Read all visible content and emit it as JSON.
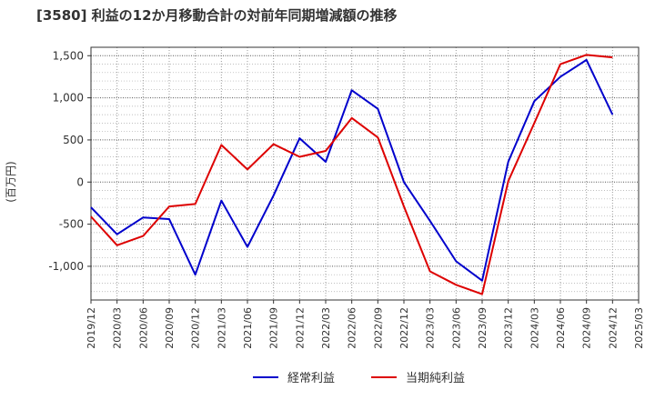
{
  "chart_data": {
    "type": "line",
    "title": "[3580]  利益の12か月移動合計の対前年同期増減額の推移",
    "ylabel": "(百万円)",
    "xlabel": "",
    "ylim": [
      -1400,
      1600
    ],
    "yticks": [
      1500,
      1000,
      500,
      0,
      -500,
      -1000
    ],
    "ytick_labels": [
      "1,500",
      "1,000",
      "500",
      "0",
      "-500",
      "-1,000"
    ],
    "grid": true,
    "legend_position": "bottom",
    "categories": [
      "2019/12",
      "2020/03",
      "2020/06",
      "2020/09",
      "2020/12",
      "2021/03",
      "2021/06",
      "2021/09",
      "2021/12",
      "2022/03",
      "2022/06",
      "2022/09",
      "2022/12",
      "2023/03",
      "2023/06",
      "2023/09",
      "2023/12",
      "2024/03",
      "2024/06",
      "2024/09",
      "2024/12",
      "2025/03"
    ],
    "series": [
      {
        "name": "経常利益",
        "color": "#0000cc",
        "values": [
          -300,
          -620,
          -420,
          -440,
          -1100,
          -220,
          -770,
          -160,
          520,
          240,
          1090,
          870,
          0,
          -460,
          -940,
          -1170,
          240,
          960,
          1250,
          1450,
          800,
          null
        ]
      },
      {
        "name": "当期純利益",
        "color": "#dd0000",
        "values": [
          -410,
          -750,
          -640,
          -290,
          -260,
          440,
          150,
          450,
          300,
          370,
          760,
          530,
          -290,
          -1060,
          -1220,
          -1330,
          10,
          700,
          1400,
          1510,
          1480,
          null
        ]
      }
    ]
  }
}
